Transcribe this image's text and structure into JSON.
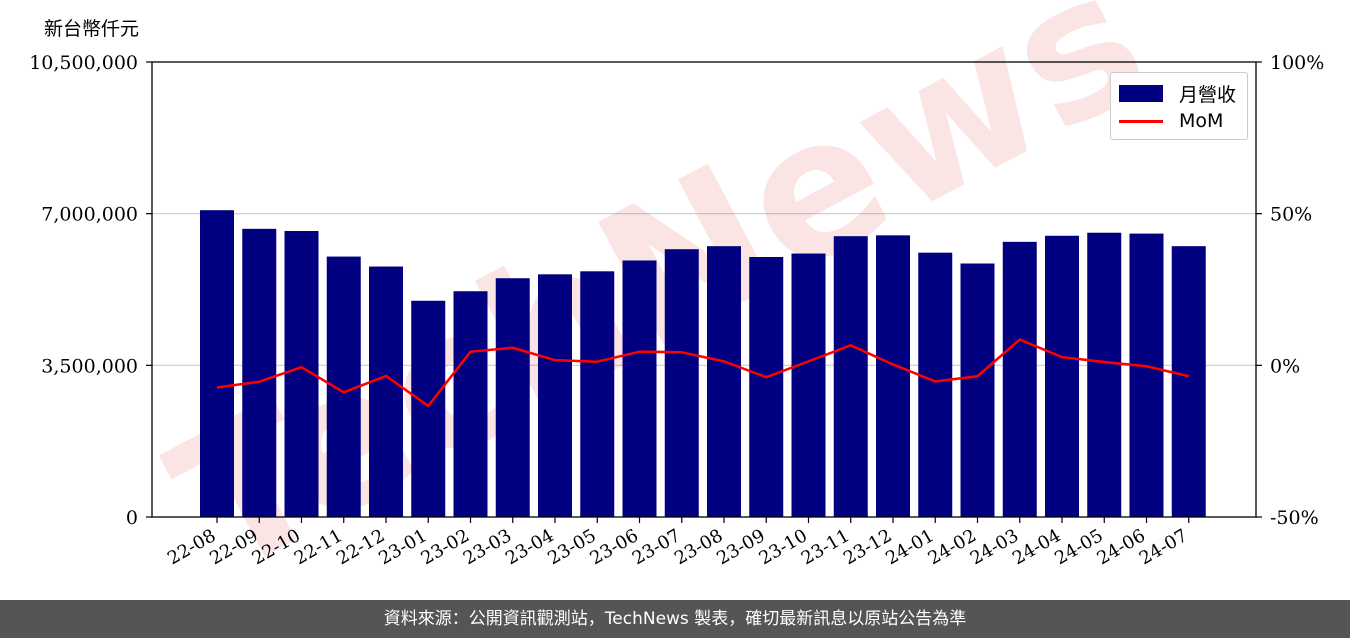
{
  "unit_label": "新台幣仟元",
  "footer": "資料來源：公開資訊觀測站，TechNews 製表，確切最新訊息以原站公告為準",
  "colors": {
    "bar": "#000080",
    "line": "#ff0000",
    "grid": "#cccccc",
    "footer_bg": "#555555"
  },
  "chart_data": {
    "type": "bar",
    "categories": [
      "22-08",
      "22-09",
      "22-10",
      "22-11",
      "22-12",
      "23-01",
      "23-02",
      "23-03",
      "23-04",
      "23-05",
      "23-06",
      "23-07",
      "23-08",
      "23-09",
      "23-10",
      "23-11",
      "23-12",
      "24-01",
      "24-02",
      "24-03",
      "24-04",
      "24-05",
      "24-06",
      "24-07"
    ],
    "series": [
      {
        "name": "月營收",
        "type": "bar",
        "axis": "left",
        "values": [
          7080000,
          6650000,
          6600000,
          6010000,
          5780000,
          4990000,
          5210000,
          5510000,
          5600000,
          5670000,
          5920000,
          6180000,
          6250000,
          6000000,
          6080000,
          6480000,
          6500000,
          6100000,
          5850000,
          6350000,
          6490000,
          6560000,
          6540000,
          6250000
        ]
      },
      {
        "name": "MoM",
        "type": "line",
        "axis": "right",
        "values": [
          -7.3,
          -5.4,
          -0.6,
          -8.9,
          -3.5,
          -13.4,
          4.5,
          5.8,
          1.7,
          1.2,
          4.5,
          4.3,
          1.3,
          -3.9,
          1.3,
          6.6,
          0.3,
          -5.3,
          -3.6,
          8.5,
          2.7,
          1.1,
          -0.3,
          -3.6
        ]
      }
    ],
    "ylim_left": [
      0,
      10500000
    ],
    "yticks_left": [
      "0",
      "3,500,000",
      "7,000,000",
      "10,500,000"
    ],
    "ylim_right": [
      -50,
      100
    ],
    "yticks_right": [
      "-50%",
      "0%",
      "50%",
      "100%"
    ],
    "grid": "horizontal",
    "legend_position": "top-right"
  }
}
